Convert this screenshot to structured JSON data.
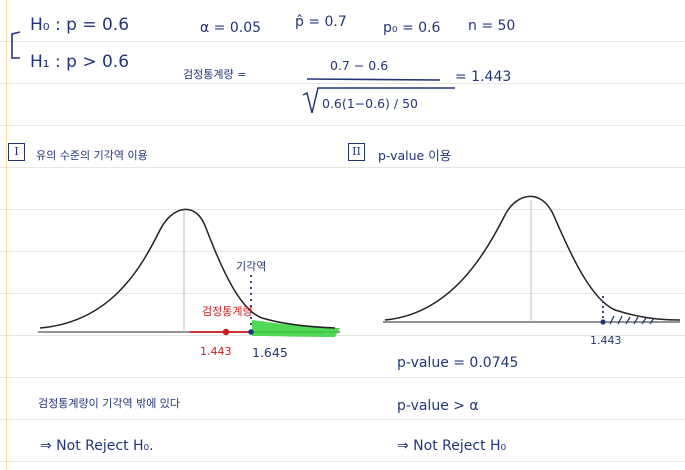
{
  "hypotheses": {
    "h0": "H₀ : p = 0.6",
    "h1": "H₁ : p > 0.6"
  },
  "given": {
    "alpha": "α = 0.05",
    "p_hat": "p̂ = 0.7",
    "p0": "p₀ = 0.6",
    "n": "n = 50"
  },
  "statistic": {
    "label": "검정통계량 =",
    "numerator": "0.7 − 0.6",
    "denominator": "0.6(1−0.6) / 50",
    "result": "= 1.443"
  },
  "method1": {
    "number": "I",
    "title": "유의 수준의 기각역 이용",
    "critical_label": "기각역",
    "statistic_label": "검정통계량",
    "stat_value": "1.443",
    "critical_value": "1.645",
    "conclusion": "검정통계량이 기각역 밖에 있다",
    "decision": "⇒ Not Reject H₀."
  },
  "method2": {
    "number": "II",
    "title": "p-value 이용",
    "stat_value": "1.443",
    "pvalue": "p-value = 0.0745",
    "compare": "p-value > α",
    "decision": "⇒ Not Reject H₀"
  },
  "colors": {
    "ink": "#23357a",
    "red": "#d01c1c",
    "green": "#33d13a"
  }
}
